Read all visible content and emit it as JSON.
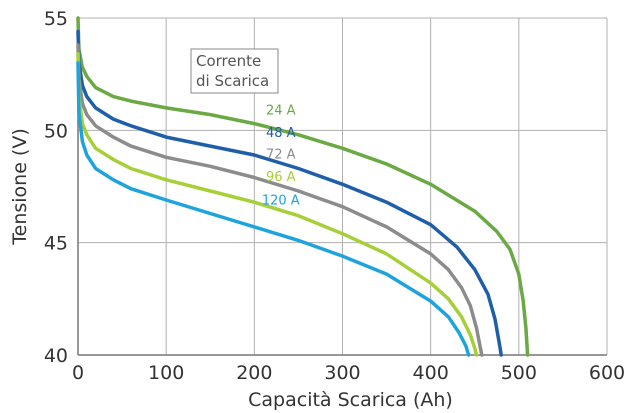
{
  "chart_data": {
    "type": "line",
    "title": "",
    "xlabel": "Capacità Scarica (Ah)",
    "ylabel": "Tensione (V)",
    "xlim": [
      0,
      600
    ],
    "ylim": [
      40,
      55
    ],
    "xticks": [
      0,
      100,
      200,
      300,
      400,
      500,
      600
    ],
    "yticks": [
      40,
      45,
      50,
      55
    ],
    "grid": true,
    "legend_title_lines": [
      "Corrente",
      "di Scarica"
    ],
    "legend_position": "top-left",
    "series": [
      {
        "name": "24 A",
        "color": "#6aa944",
        "points": [
          [
            0,
            55.0
          ],
          [
            1,
            53.6
          ],
          [
            5,
            52.8
          ],
          [
            10,
            52.4
          ],
          [
            20,
            51.9
          ],
          [
            40,
            51.5
          ],
          [
            60,
            51.3
          ],
          [
            100,
            51.0
          ],
          [
            150,
            50.7
          ],
          [
            200,
            50.3
          ],
          [
            250,
            49.8
          ],
          [
            300,
            49.2
          ],
          [
            350,
            48.5
          ],
          [
            400,
            47.6
          ],
          [
            450,
            46.4
          ],
          [
            475,
            45.5
          ],
          [
            490,
            44.7
          ],
          [
            500,
            43.6
          ],
          [
            505,
            42.4
          ],
          [
            508,
            41.2
          ],
          [
            510,
            40.0
          ]
        ]
      },
      {
        "name": "48 A",
        "color": "#1f5ea8",
        "points": [
          [
            0,
            54.4
          ],
          [
            1,
            53.0
          ],
          [
            5,
            52.0
          ],
          [
            10,
            51.5
          ],
          [
            20,
            51.0
          ],
          [
            40,
            50.5
          ],
          [
            60,
            50.2
          ],
          [
            100,
            49.7
          ],
          [
            150,
            49.3
          ],
          [
            200,
            48.9
          ],
          [
            250,
            48.3
          ],
          [
            300,
            47.6
          ],
          [
            350,
            46.8
          ],
          [
            400,
            45.8
          ],
          [
            430,
            44.8
          ],
          [
            450,
            43.8
          ],
          [
            465,
            42.7
          ],
          [
            473,
            41.6
          ],
          [
            478,
            40.5
          ],
          [
            480,
            40.0
          ]
        ]
      },
      {
        "name": "72 A",
        "color": "#8c8c8c",
        "points": [
          [
            0,
            53.8
          ],
          [
            1,
            52.3
          ],
          [
            5,
            51.2
          ],
          [
            10,
            50.7
          ],
          [
            20,
            50.2
          ],
          [
            40,
            49.7
          ],
          [
            60,
            49.3
          ],
          [
            100,
            48.8
          ],
          [
            150,
            48.4
          ],
          [
            200,
            47.9
          ],
          [
            250,
            47.3
          ],
          [
            300,
            46.6
          ],
          [
            350,
            45.7
          ],
          [
            400,
            44.5
          ],
          [
            420,
            43.8
          ],
          [
            435,
            43.0
          ],
          [
            445,
            42.2
          ],
          [
            452,
            41.2
          ],
          [
            456,
            40.4
          ],
          [
            458,
            40.0
          ]
        ]
      },
      {
        "name": "96 A",
        "color": "#a6cf38",
        "points": [
          [
            0,
            53.4
          ],
          [
            1,
            51.5
          ],
          [
            5,
            50.3
          ],
          [
            10,
            49.8
          ],
          [
            20,
            49.2
          ],
          [
            40,
            48.7
          ],
          [
            60,
            48.3
          ],
          [
            100,
            47.8
          ],
          [
            150,
            47.3
          ],
          [
            200,
            46.8
          ],
          [
            250,
            46.2
          ],
          [
            300,
            45.4
          ],
          [
            350,
            44.5
          ],
          [
            400,
            43.2
          ],
          [
            420,
            42.5
          ],
          [
            435,
            41.7
          ],
          [
            445,
            40.9
          ],
          [
            450,
            40.3
          ],
          [
            452,
            40.0
          ]
        ]
      },
      {
        "name": "120 A",
        "color": "#1ea3dc",
        "points": [
          [
            0,
            53.0
          ],
          [
            1,
            50.8
          ],
          [
            5,
            49.5
          ],
          [
            10,
            48.9
          ],
          [
            20,
            48.3
          ],
          [
            40,
            47.8
          ],
          [
            60,
            47.4
          ],
          [
            100,
            46.9
          ],
          [
            150,
            46.3
          ],
          [
            200,
            45.7
          ],
          [
            250,
            45.1
          ],
          [
            300,
            44.4
          ],
          [
            350,
            43.6
          ],
          [
            400,
            42.4
          ],
          [
            420,
            41.7
          ],
          [
            432,
            41.0
          ],
          [
            440,
            40.4
          ],
          [
            443,
            40.0
          ]
        ]
      }
    ],
    "series_label_positions": [
      {
        "name": "24 A",
        "x": 230,
        "y": 50.7
      },
      {
        "name": "48 A",
        "x": 230,
        "y": 49.7
      },
      {
        "name": "72 A",
        "x": 230,
        "y": 48.75
      },
      {
        "name": "96 A",
        "x": 230,
        "y": 47.75
      },
      {
        "name": "120 A",
        "x": 230,
        "y": 46.7
      }
    ]
  }
}
